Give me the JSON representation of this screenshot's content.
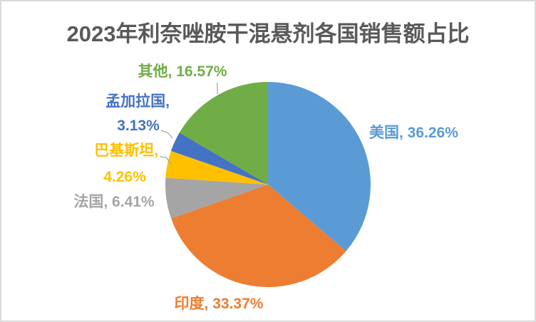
{
  "window": {
    "background": "#FFFFFF",
    "frame_color": "#D9D9D9"
  },
  "chart_data": {
    "type": "pie",
    "title": "2023年利奈唑胺干混悬剂各国销售额占比",
    "title_color": "#595959",
    "categories": [
      "美国",
      "印度",
      "法国",
      "巴基斯坦",
      "孟加拉国",
      "其他"
    ],
    "values": [
      36.26,
      33.37,
      6.41,
      4.26,
      3.13,
      16.57
    ],
    "unit": "%",
    "colors": [
      "#5B9BD5",
      "#ED7D31",
      "#A5A5A5",
      "#FFC000",
      "#4472C4",
      "#70AD47"
    ],
    "slice_keys": [
      "usa",
      "india",
      "france",
      "pakistan",
      "bangladesh",
      "others"
    ],
    "start_angle_deg": 0,
    "direction": "clockwise",
    "legend": "none",
    "label_style": "outside-callout",
    "leader_line_color": "#A6A6A6",
    "callouts": {
      "usa": "美国, 36.26%",
      "india": "印度, 33.37%",
      "france": "法国, 6.41%",
      "pakistan_name": "巴基斯坦,",
      "pakistan_value": "4.26%",
      "bangladesh_name": "孟加拉国,",
      "bangladesh_value": "3.13%",
      "others": "其他, 16.57%"
    }
  }
}
